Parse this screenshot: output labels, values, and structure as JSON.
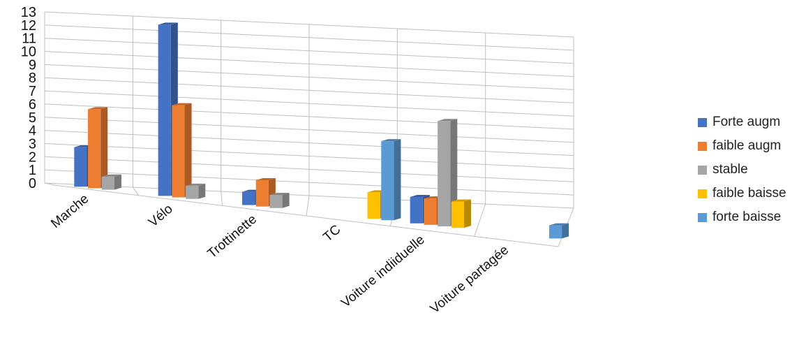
{
  "chart_data": {
    "type": "bar",
    "categories": [
      "Marche",
      "Vélo",
      "Trottinette",
      "TC",
      "Voiture indiiduelle",
      "Voiture partagée"
    ],
    "series": [
      {
        "name": "Forte augm",
        "values": [
          3,
          13,
          1,
          0,
          2,
          0
        ],
        "color": "#4472C4"
      },
      {
        "name": "faible augm",
        "values": [
          6,
          7,
          2,
          0,
          2,
          0
        ],
        "color": "#ED7D31"
      },
      {
        "name": "stable",
        "values": [
          1,
          1,
          1,
          0,
          8,
          0
        ],
        "color": "#A5A5A5"
      },
      {
        "name": "faible baisse",
        "values": [
          0,
          0,
          0,
          2,
          2,
          0
        ],
        "color": "#FFC000"
      },
      {
        "name": "forte baisse",
        "values": [
          0,
          0,
          0,
          6,
          0,
          1
        ],
        "color": "#5B9BD5"
      }
    ],
    "y_ticks": [
      "0",
      "1",
      "2",
      "3",
      "4",
      "5",
      "6",
      "7",
      "8",
      "9",
      "10",
      "11",
      "12",
      "13"
    ],
    "ylim": [
      0,
      13
    ],
    "grid": true,
    "legend_position": "right",
    "three_d": true
  }
}
